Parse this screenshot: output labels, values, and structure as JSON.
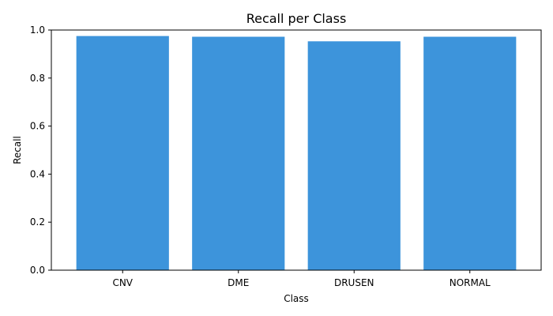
{
  "chart_data": {
    "type": "bar",
    "title": "Recall per Class",
    "xlabel": "Class",
    "ylabel": "Recall",
    "categories": [
      "CNV",
      "DME",
      "DRUSEN",
      "NORMAL"
    ],
    "values": [
      0.975,
      0.972,
      0.953,
      0.972
    ],
    "ylim": [
      0,
      1.0
    ],
    "yticks": [
      "0.0",
      "0.2",
      "0.4",
      "0.6",
      "0.8",
      "1.0"
    ],
    "grid": false,
    "legend": "none",
    "bar_color": "#3d94db"
  }
}
